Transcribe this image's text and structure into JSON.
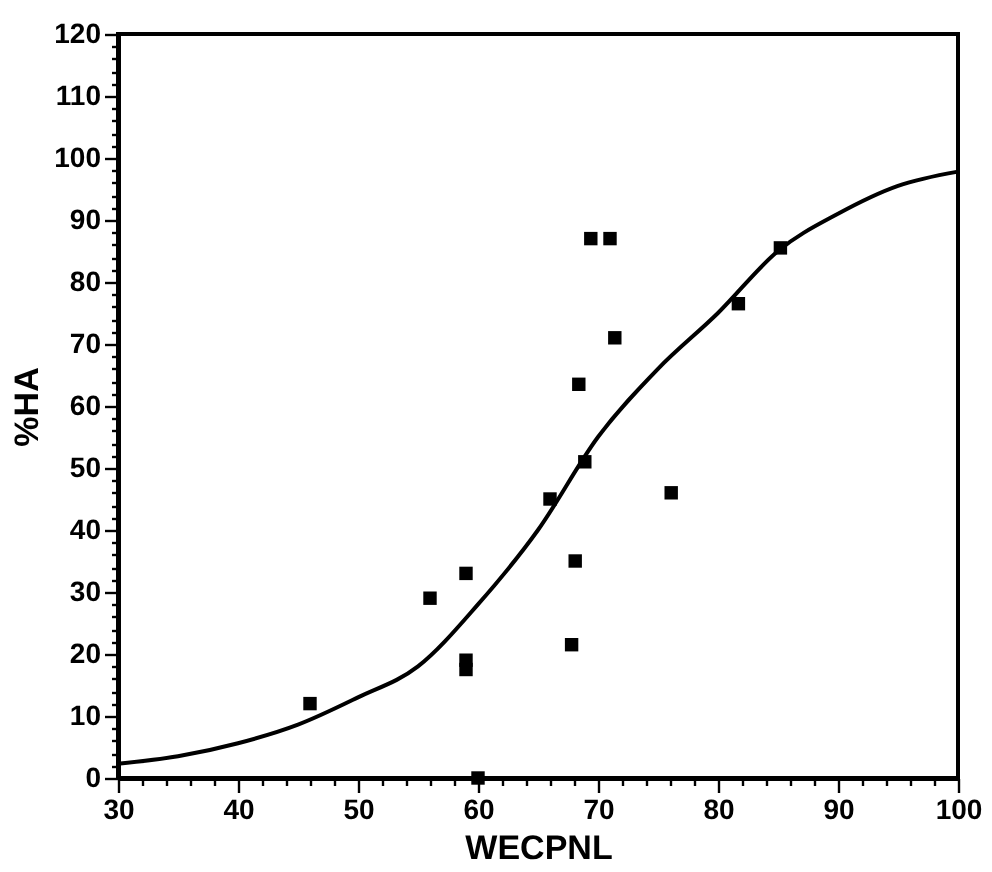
{
  "chart_data": {
    "type": "scatter",
    "xlabel": "WECPNL",
    "ylabel": "%HA",
    "xlim": [
      30,
      100
    ],
    "ylim": [
      0,
      120
    ],
    "xticks": [
      30,
      {
        "value": 32,
        "label": null
      },
      {
        "value": 34,
        "label": null
      },
      {
        "value": 36,
        "label": null
      },
      {
        "value": 38,
        "label": null
      },
      40,
      {
        "value": 42,
        "label": null
      },
      {
        "value": 44,
        "label": null
      },
      {
        "value": 46,
        "label": null
      },
      {
        "value": 48,
        "label": null
      },
      50,
      {
        "value": 52,
        "label": null
      },
      {
        "value": 54,
        "label": null
      },
      {
        "value": 56,
        "label": null
      },
      {
        "value": 58,
        "label": null
      },
      60,
      {
        "value": 62,
        "label": null
      },
      {
        "value": 64,
        "label": null
      },
      {
        "value": 66,
        "label": null
      },
      {
        "value": 68,
        "label": null
      },
      70,
      {
        "value": 72,
        "label": null
      },
      {
        "value": 74,
        "label": null
      },
      {
        "value": 76,
        "label": null
      },
      {
        "value": 78,
        "label": null
      },
      80,
      {
        "value": 82,
        "label": null
      },
      {
        "value": 84,
        "label": null
      },
      {
        "value": 86,
        "label": null
      },
      {
        "value": 88,
        "label": null
      },
      90,
      {
        "value": 92,
        "label": null
      },
      {
        "value": 94,
        "label": null
      },
      {
        "value": 96,
        "label": null
      },
      {
        "value": 98,
        "label": null
      },
      100
    ],
    "yticks": [
      0,
      {
        "value": 2,
        "label": null
      },
      {
        "value": 4,
        "label": null
      },
      {
        "value": 6,
        "label": null
      },
      {
        "value": 8,
        "label": null
      },
      10,
      {
        "value": 12,
        "label": null
      },
      {
        "value": 14,
        "label": null
      },
      {
        "value": 16,
        "label": null
      },
      {
        "value": 18,
        "label": null
      },
      20,
      {
        "value": 22,
        "label": null
      },
      {
        "value": 24,
        "label": null
      },
      {
        "value": 26,
        "label": null
      },
      {
        "value": 28,
        "label": null
      },
      30,
      {
        "value": 32,
        "label": null
      },
      {
        "value": 34,
        "label": null
      },
      {
        "value": 36,
        "label": null
      },
      {
        "value": 38,
        "label": null
      },
      40,
      {
        "value": 42,
        "label": null
      },
      {
        "value": 44,
        "label": null
      },
      {
        "value": 46,
        "label": null
      },
      {
        "value": 48,
        "label": null
      },
      50,
      {
        "value": 52,
        "label": null
      },
      {
        "value": 54,
        "label": null
      },
      {
        "value": 56,
        "label": null
      },
      {
        "value": 58,
        "label": null
      },
      60,
      {
        "value": 62,
        "label": null
      },
      {
        "value": 64,
        "label": null
      },
      {
        "value": 66,
        "label": null
      },
      {
        "value": 68,
        "label": null
      },
      70,
      {
        "value": 72,
        "label": null
      },
      {
        "value": 74,
        "label": null
      },
      {
        "value": 76,
        "label": null
      },
      {
        "value": 78,
        "label": null
      },
      80,
      {
        "value": 82,
        "label": null
      },
      {
        "value": 84,
        "label": null
      },
      {
        "value": 86,
        "label": null
      },
      {
        "value": 88,
        "label": null
      },
      90,
      {
        "value": 92,
        "label": null
      },
      {
        "value": 94,
        "label": null
      },
      {
        "value": 96,
        "label": null
      },
      {
        "value": 98,
        "label": null
      },
      100,
      {
        "value": 102,
        "label": null
      },
      {
        "value": 104,
        "label": null
      },
      {
        "value": 106,
        "label": null
      },
      {
        "value": 108,
        "label": null
      },
      110,
      {
        "value": 112,
        "label": null
      },
      {
        "value": 114,
        "label": null
      },
      {
        "value": 116,
        "label": null
      },
      {
        "value": 118,
        "label": null
      },
      120
    ],
    "grid": false,
    "marker": "square",
    "series": [
      {
        "color": "#000000",
        "x": [
          46,
          56,
          59,
          59,
          59,
          60,
          69.4,
          71,
          85.2,
          81.7,
          71.4,
          68.4,
          68.9,
          66,
          76.1,
          68.1,
          67.8
        ],
        "values": [
          12,
          29,
          33,
          19,
          17.5,
          0,
          87,
          87,
          85.5,
          76.5,
          71,
          63.5,
          51,
          45,
          46,
          35,
          21.5
        ]
      },
      {
        "type": "line",
        "color": "#000000",
        "line_style": "solid",
        "marker": "none",
        "x": [
          30,
          35,
          40,
          45,
          50,
          55,
          60,
          65,
          70,
          75,
          80,
          85,
          90,
          95,
          100
        ],
        "values": [
          2.3,
          3.5,
          5.6,
          8.6,
          13,
          18,
          28,
          40,
          55,
          66,
          75,
          85,
          91,
          95.5,
          97.8
        ]
      }
    ]
  }
}
